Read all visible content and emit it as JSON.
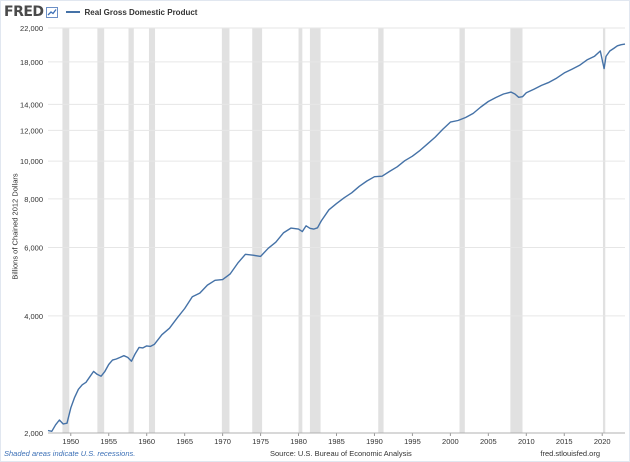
{
  "header": {
    "logo_text": "FRED",
    "logo_icon": "fred-chart-icon",
    "legend_label": "Real Gross Domestic Product",
    "legend_color": "#4572a7"
  },
  "footer": {
    "recession_note": "Shaded areas indicate U.S. recessions.",
    "source": "Source: U.S. Bureau of Economic Analysis",
    "site": "fred.stlouisfed.org"
  },
  "colors": {
    "line": "#4572a7",
    "recession_band": "#e1e1e1",
    "grid": "#e6e6e6",
    "footer_note": "#3b6fb6"
  },
  "chart_data": {
    "type": "line",
    "title": "",
    "xlabel": "",
    "ylabel": "Billions of Chained 2012 Dollars",
    "y_scale": "log",
    "xlim": [
      1947,
      2023
    ],
    "ylim": [
      2000,
      22000
    ],
    "x_ticks": [
      1950,
      1955,
      1960,
      1965,
      1970,
      1975,
      1980,
      1985,
      1990,
      1995,
      2000,
      2005,
      2010,
      2015,
      2020
    ],
    "y_ticks": [
      2000,
      4000,
      6000,
      8000,
      10000,
      12000,
      14000,
      18000,
      22000
    ],
    "y_tick_labels": [
      "2,000",
      "4,000",
      "6,000",
      "8,000",
      "10,000",
      "12,000",
      "14,000",
      "18,000",
      "22,000"
    ],
    "grid": true,
    "legend": "top-left",
    "recessions": [
      [
        1948.9,
        1949.8
      ],
      [
        1953.5,
        1954.4
      ],
      [
        1957.6,
        1958.3
      ],
      [
        1960.3,
        1961.1
      ],
      [
        1969.9,
        1970.9
      ],
      [
        1973.9,
        1975.2
      ],
      [
        1980.0,
        1980.5
      ],
      [
        1981.5,
        1982.9
      ],
      [
        1990.5,
        1991.2
      ],
      [
        2001.2,
        2001.9
      ],
      [
        2007.9,
        2009.5
      ],
      [
        2020.1,
        2020.4
      ]
    ],
    "series": [
      {
        "name": "Real Gross Domestic Product",
        "x": [
          1947,
          1947.5,
          1948,
          1948.5,
          1949,
          1949.5,
          1950,
          1950.5,
          1951,
          1951.5,
          1952,
          1952.5,
          1953,
          1953.5,
          1954,
          1954.5,
          1955,
          1955.5,
          1956,
          1956.5,
          1957,
          1957.5,
          1958,
          1958.5,
          1959,
          1959.5,
          1960,
          1960.5,
          1961,
          1962,
          1963,
          1964,
          1965,
          1966,
          1967,
          1968,
          1969,
          1970,
          1971,
          1972,
          1973,
          1974,
          1975,
          1976,
          1977,
          1978,
          1979,
          1980,
          1980.5,
          1981,
          1981.5,
          1982,
          1982.5,
          1983,
          1984,
          1985,
          1986,
          1987,
          1988,
          1989,
          1990,
          1991,
          1992,
          1993,
          1994,
          1995,
          1996,
          1997,
          1998,
          1999,
          2000,
          2001,
          2002,
          2003,
          2004,
          2005,
          2006,
          2007,
          2008,
          2008.5,
          2009,
          2009.5,
          2010,
          2011,
          2012,
          2013,
          2014,
          2015,
          2016,
          2017,
          2018,
          2019,
          2019.75,
          2020.25,
          2020.5,
          2021,
          2021.5,
          2022,
          2022.5,
          2023
        ],
        "values": [
          2030,
          2020,
          2100,
          2160,
          2110,
          2120,
          2320,
          2470,
          2590,
          2660,
          2700,
          2790,
          2880,
          2830,
          2800,
          2880,
          3000,
          3080,
          3100,
          3130,
          3160,
          3130,
          3060,
          3200,
          3320,
          3310,
          3350,
          3340,
          3380,
          3580,
          3720,
          3950,
          4180,
          4480,
          4580,
          4800,
          4940,
          4960,
          5130,
          5470,
          5760,
          5730,
          5690,
          5970,
          6190,
          6540,
          6730,
          6690,
          6590,
          6820,
          6720,
          6690,
          6740,
          7020,
          7500,
          7780,
          8050,
          8290,
          8620,
          8890,
          9120,
          9150,
          9410,
          9670,
          10030,
          10300,
          10660,
          11080,
          11530,
          12080,
          12600,
          12720,
          12950,
          13270,
          13780,
          14240,
          14580,
          14880,
          15050,
          14880,
          14600,
          14650,
          14990,
          15310,
          15660,
          15950,
          16350,
          16860,
          17240,
          17630,
          18210,
          18620,
          19200,
          17300,
          18600,
          19200,
          19480,
          19800,
          19930,
          20000
        ]
      }
    ]
  }
}
